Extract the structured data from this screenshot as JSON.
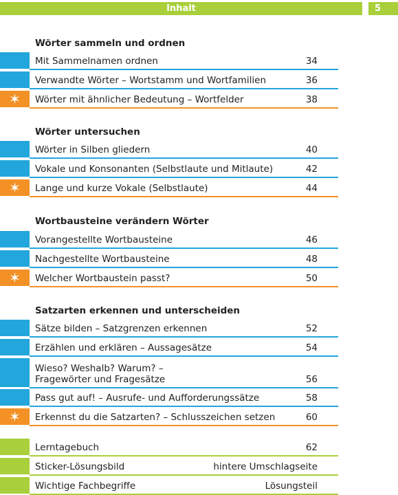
{
  "header": {
    "title": "Inhalt",
    "page_number": "5"
  },
  "sections": [
    {
      "title": "Wörter sammeln und ordnen",
      "items": [
        {
          "label": "Mit Sammelnamen ordnen",
          "page": "34",
          "style": "blue"
        },
        {
          "label": "Verwandte Wörter – Wortstamm und Wortfamilien",
          "page": "36",
          "style": "blue"
        },
        {
          "label": "Wörter mit ähnlicher Bedeutung – Wortfelder",
          "page": "38",
          "style": "orange-star"
        }
      ]
    },
    {
      "title": "Wörter untersuchen",
      "items": [
        {
          "label": "Wörter in Silben gliedern",
          "page": "40",
          "style": "blue"
        },
        {
          "label": "Vokale und Konsonanten (Selbstlaute und Mitlaute)",
          "page": "42",
          "style": "blue"
        },
        {
          "label": "Lange und kurze Vokale (Selbstlaute)",
          "page": "44",
          "style": "orange-star"
        }
      ]
    },
    {
      "title": "Wortbausteine verändern Wörter",
      "items": [
        {
          "label": "Vorangestellte Wortbausteine",
          "page": "46",
          "style": "blue"
        },
        {
          "label": "Nachgestellte Wortbausteine",
          "page": "48",
          "style": "blue"
        },
        {
          "label": "Welcher Wortbaustein passt?",
          "page": "50",
          "style": "orange-star"
        }
      ]
    },
    {
      "title": "Satzarten erkennen und unterscheiden",
      "items": [
        {
          "label": "Sätze bilden – Satzgrenzen erkennen",
          "page": "52",
          "style": "blue"
        },
        {
          "label": "Erzählen und erklären – Aussagesätze",
          "page": "54",
          "style": "blue"
        },
        {
          "label_line1": "Wieso? Weshalb? Warum? –",
          "label_line2": "Fragewörter und Fragesätze",
          "page": "56",
          "style": "blue"
        },
        {
          "label": "Pass gut auf! – Ausrufe- und Aufforderungssätze",
          "page": "58",
          "style": "blue"
        },
        {
          "label": "Erkennst du die Satzarten? – Schlusszeichen setzen",
          "page": "60",
          "style": "orange-star"
        }
      ]
    }
  ],
  "appendix": [
    {
      "label": "Lerntagebuch",
      "page": "62"
    },
    {
      "label": "Sticker-Lösungsbild",
      "page": "hintere Umschlagseite"
    },
    {
      "label": "Wichtige Fachbegriffe",
      "page": "Lösungsteil"
    }
  ],
  "colors": {
    "blue": "#22a6dc",
    "orange": "#f39126",
    "green": "#a9cf3a"
  }
}
